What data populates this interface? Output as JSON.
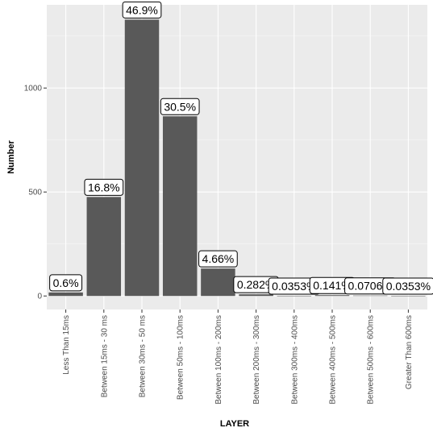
{
  "chart_data": {
    "type": "bar",
    "title": "",
    "xlabel": "LAYER",
    "ylabel": "Number",
    "categories": [
      "Less Than 15ms",
      "Between 15ms - 30 ms",
      "Between 30ms - 50 ms",
      "Between 50ms - 100ms",
      "Between 100ms - 200ms",
      "Between 200ms - 300ms",
      "Between 300ms - 400ms",
      "Between 400ms - 500ms",
      "Between 500ms - 600ms",
      "Greater Than 600ms"
    ],
    "values": [
      17,
      476,
      1329,
      864,
      132,
      8,
      1,
      4,
      2,
      1
    ],
    "labels": [
      "0.6%",
      "16.8%",
      "46.9%",
      "30.5%",
      "4.66%",
      "0.282%",
      "0.0353%",
      "0.141%",
      "0.0706%",
      "0.0353%"
    ],
    "yticks": [
      0,
      500,
      1000
    ],
    "ylim": [
      -65,
      1400
    ],
    "grid": true,
    "legend": "none",
    "colors": {
      "panel_bg": "#ebebeb",
      "grid_major": "#ffffff",
      "bar": "#595959",
      "label_fill": "#ffffff",
      "label_border": "#000000"
    }
  }
}
